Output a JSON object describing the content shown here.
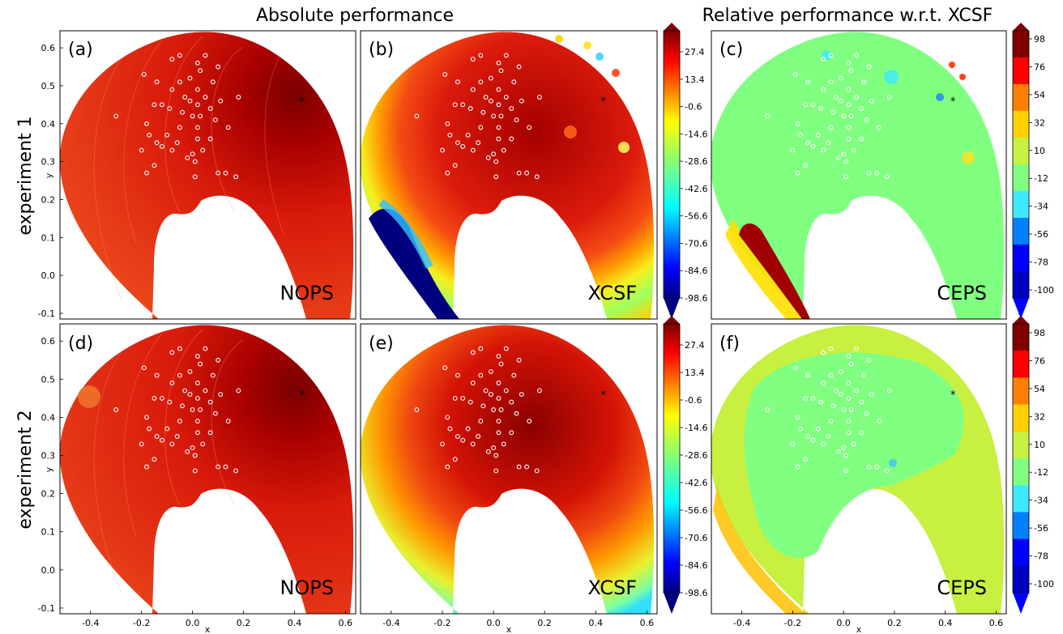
{
  "headers": {
    "absolute": "Absolute performance",
    "relative": "Relative performance w.r.t. XCSF"
  },
  "row_labels": [
    "experiment 1",
    "experiment 2"
  ],
  "colors": {
    "jet": [
      "#00007f",
      "#0000ff",
      "#007fff",
      "#00ffff",
      "#7fff7f",
      "#ffff00",
      "#ff7f00",
      "#ff0000",
      "#7f0000"
    ],
    "marker_circle": "#ffffff",
    "target_marker": "#000000"
  },
  "colorbars": {
    "absolute": {
      "ticks": [
        "27.4",
        "13.4",
        "-0.6",
        "-14.6",
        "-28.6",
        "-42.6",
        "-56.6",
        "-70.6",
        "-84.6",
        "-98.6"
      ],
      "extend": "both",
      "colormap": "jet"
    },
    "relative": {
      "ticks": [
        "98",
        "76",
        "54",
        "32",
        "10",
        "-12",
        "-34",
        "-56",
        "-78",
        "-100"
      ],
      "extend": "both",
      "colormap": "jet, discrete levels"
    }
  },
  "chart_data": [
    {
      "panel": "(a)",
      "label": "NOPS",
      "type": "heatmap",
      "row": 1,
      "metric": "absolute",
      "xlabel": "",
      "ylabel": "y",
      "xticks": [],
      "yticks": [
        "0.6",
        "0.5",
        "0.4",
        "0.3",
        "0.2",
        "0.1",
        "0.0",
        "-0.1"
      ],
      "xlim": [
        -0.52,
        0.64
      ],
      "ylim": [
        -0.115,
        0.645
      ]
    },
    {
      "panel": "(b)",
      "label": "XCSF",
      "type": "heatmap",
      "row": 1,
      "metric": "absolute",
      "xlabel": "",
      "ylabel": "",
      "xticks": [],
      "yticks": [],
      "xlim": [
        -0.52,
        0.64
      ],
      "ylim": [
        -0.115,
        0.645
      ]
    },
    {
      "panel": "(c)",
      "label": "CEPS",
      "type": "heatmap",
      "row": 1,
      "metric": "relative",
      "xlabel": "",
      "ylabel": "",
      "xticks": [],
      "yticks": [],
      "xlim": [
        -0.52,
        0.64
      ],
      "ylim": [
        -0.115,
        0.645
      ]
    },
    {
      "panel": "(d)",
      "label": "NOPS",
      "type": "heatmap",
      "row": 2,
      "metric": "absolute",
      "xlabel": "x",
      "ylabel": "y",
      "xticks": [
        "-0.4",
        "-0.2",
        "0.0",
        "0.2",
        "0.4",
        "0.6"
      ],
      "yticks": [
        "0.6",
        "0.5",
        "0.4",
        "0.3",
        "0.2",
        "0.1",
        "0.0",
        "-0.1"
      ],
      "xlim": [
        -0.52,
        0.64
      ],
      "ylim": [
        -0.115,
        0.645
      ]
    },
    {
      "panel": "(e)",
      "label": "XCSF",
      "type": "heatmap",
      "row": 2,
      "metric": "absolute",
      "xlabel": "x",
      "ylabel": "",
      "xticks": [
        "-0.4",
        "-0.2",
        "0.0",
        "0.2",
        "0.4",
        "0.6"
      ],
      "yticks": [],
      "xlim": [
        -0.52,
        0.64
      ],
      "ylim": [
        -0.115,
        0.645
      ]
    },
    {
      "panel": "(f)",
      "label": "CEPS",
      "type": "heatmap",
      "row": 2,
      "metric": "relative",
      "xlabel": "x",
      "ylabel": "",
      "xticks": [
        "-0.4",
        "-0.2",
        "0.0",
        "0.2",
        "0.4",
        "0.6"
      ],
      "yticks": [],
      "xlim": [
        -0.52,
        0.64
      ],
      "ylim": [
        -0.115,
        0.645
      ]
    }
  ],
  "sample_points": [
    [
      -0.05,
      0.58
    ],
    [
      -0.08,
      0.57
    ],
    [
      0.05,
      0.58
    ],
    [
      0.02,
      0.56
    ],
    [
      0.1,
      0.55
    ],
    [
      0.03,
      0.54
    ],
    [
      -0.19,
      0.53
    ],
    [
      -0.01,
      0.52
    ],
    [
      -0.14,
      0.51
    ],
    [
      0.08,
      0.51
    ],
    [
      -0.05,
      0.51
    ],
    [
      -0.08,
      0.49
    ],
    [
      0.02,
      0.49
    ],
    [
      0.05,
      0.47
    ],
    [
      -0.03,
      0.47
    ],
    [
      -0.01,
      0.46
    ],
    [
      0.11,
      0.46
    ],
    [
      -0.12,
      0.45
    ],
    [
      0.18,
      0.47
    ],
    [
      0.02,
      0.45
    ],
    [
      -0.15,
      0.45
    ],
    [
      0.07,
      0.44
    ],
    [
      -0.09,
      0.44
    ],
    [
      -0.04,
      0.43
    ],
    [
      0.0,
      0.42
    ],
    [
      0.03,
      0.42
    ],
    [
      0.09,
      0.41
    ],
    [
      -0.3,
      0.42
    ],
    [
      -0.18,
      0.4
    ],
    [
      0.02,
      0.39
    ],
    [
      0.14,
      0.39
    ],
    [
      -0.05,
      0.39
    ],
    [
      -0.1,
      0.37
    ],
    [
      -0.17,
      0.37
    ],
    [
      0.07,
      0.36
    ],
    [
      0.02,
      0.36
    ],
    [
      -0.14,
      0.35
    ],
    [
      -0.06,
      0.35
    ],
    [
      -0.12,
      0.34
    ],
    [
      0.04,
      0.33
    ],
    [
      -0.2,
      0.33
    ],
    [
      -0.08,
      0.33
    ],
    [
      0.0,
      0.32
    ],
    [
      -0.02,
      0.31
    ],
    [
      0.01,
      0.3
    ],
    [
      -0.15,
      0.29
    ],
    [
      0.1,
      0.27
    ],
    [
      0.13,
      0.27
    ],
    [
      0.17,
      0.26
    ],
    [
      -0.18,
      0.27
    ],
    [
      0.01,
      0.26
    ]
  ],
  "target_point": [
    0.43,
    0.46
  ]
}
